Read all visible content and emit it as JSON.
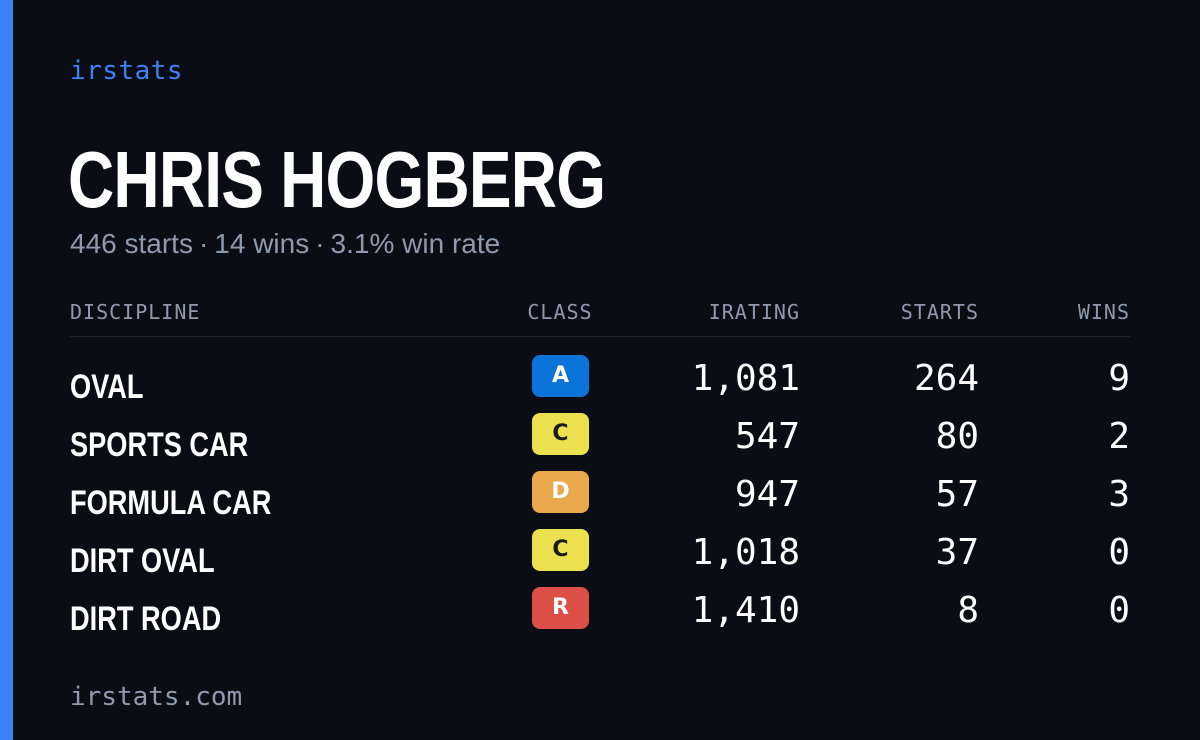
{
  "brand": "irstats",
  "driver": {
    "name": "CHRIS HOGBERG",
    "starts_text": "446 starts",
    "wins_text": "14 wins",
    "win_rate_text": "3.1% win rate",
    "separator": "·"
  },
  "table": {
    "headers": {
      "discipline": "DISCIPLINE",
      "class": "CLASS",
      "irating": "IRATING",
      "starts": "STARTS",
      "wins": "WINS"
    },
    "rows": [
      {
        "discipline": "OVAL",
        "class": "A",
        "class_color": "#0a74da",
        "irating": "1,081",
        "starts": "264",
        "wins": "9"
      },
      {
        "discipline": "SPORTS CAR",
        "class": "C",
        "class_color": "#ebe04e",
        "irating": "547",
        "starts": "80",
        "wins": "2"
      },
      {
        "discipline": "FORMULA CAR",
        "class": "D",
        "class_color": "#e9a84c",
        "irating": "947",
        "starts": "57",
        "wins": "3"
      },
      {
        "discipline": "DIRT OVAL",
        "class": "C",
        "class_color": "#ebe04e",
        "irating": "1,018",
        "starts": "37",
        "wins": "0"
      },
      {
        "discipline": "DIRT ROAD",
        "class": "R",
        "class_color": "#dc4f47",
        "irating": "1,410",
        "starts": "8",
        "wins": "0"
      }
    ]
  },
  "footer": "irstats.com",
  "colors": {
    "background": "#0b0d14",
    "accent": "#3b82f6",
    "muted_text": "#8f9aaf"
  }
}
